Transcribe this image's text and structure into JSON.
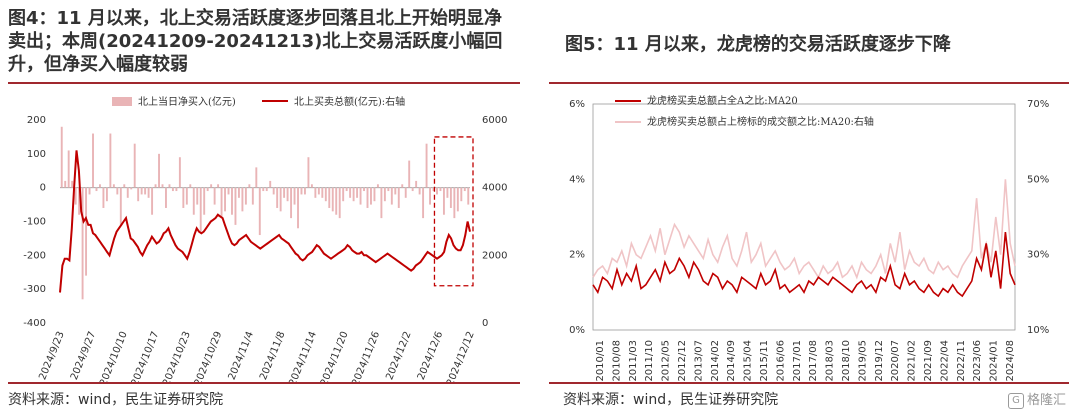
{
  "left": {
    "title": "图4：11 月以来，北上交易活跃度逐步回落且北上开始明显净卖出；本周(20241209-20241213)北上交易活跃度小幅回升，但净买入幅度较弱",
    "source": "资料来源：wind，民生证券研究院",
    "colors": {
      "bar": "#e9b4b6",
      "line": "#c00000",
      "highlight": "#c00000"
    },
    "chart_data": {
      "type": "bar+line",
      "legend": {
        "placement": "top",
        "entries": [
          "北上当日净买入(亿元)",
          "北上买卖总额(亿元):右轴"
        ]
      },
      "x_ticks": [
        "2024/9/23",
        "2024/9/27",
        "2024/10/10",
        "2024/10/17",
        "2024/10/23",
        "2024/10/29",
        "2024/11/4",
        "2024/11/8",
        "2024/11/14",
        "2024/11/20",
        "2024/11/26",
        "2024/12/2",
        "2024/12/6",
        "2024/12/12"
      ],
      "y_left": {
        "min": -400,
        "max": 200,
        "step": 100,
        "ticks": [
          "200",
          "100",
          "0",
          "-100",
          "-200",
          "-300",
          "-400"
        ]
      },
      "y_right": {
        "min": 0,
        "max": 6000,
        "step": 2000,
        "ticks": [
          "6000",
          "4000",
          "2000",
          "0"
        ]
      },
      "net_buy": [
        180,
        20,
        110,
        20,
        -50,
        -80,
        -330,
        -260,
        -20,
        160,
        -10,
        10,
        -60,
        -40,
        160,
        10,
        -20,
        -110,
        10,
        -30,
        -5,
        130,
        -40,
        -20,
        -20,
        -30,
        -80,
        10,
        100,
        10,
        -60,
        10,
        -10,
        -10,
        90,
        -60,
        -50,
        10,
        -80,
        -50,
        -130,
        -80,
        -10,
        10,
        -50,
        10,
        -90,
        -70,
        -20,
        -80,
        -110,
        -30,
        -70,
        -50,
        10,
        -50,
        60,
        -140,
        -10,
        -10,
        20,
        -20,
        -60,
        -70,
        -30,
        -40,
        -90,
        -50,
        -120,
        -20,
        -20,
        90,
        10,
        -30,
        -20,
        -30,
        -40,
        -60,
        -70,
        -80,
        -90,
        -40,
        -10,
        -30,
        -40,
        -30,
        -50,
        -10,
        -60,
        -50,
        -40,
        10,
        -90,
        -40,
        -10,
        -50,
        -20,
        -60,
        10,
        -30,
        80,
        -10,
        20,
        -20,
        -90,
        130,
        -50,
        -10,
        -20,
        -10,
        -80,
        -30,
        -60,
        -90,
        -70,
        -40,
        -10,
        -50
      ],
      "turnover": [
        900,
        1700,
        1900,
        1900,
        1850,
        2800,
        4000,
        5100,
        4500,
        3300,
        3000,
        3100,
        2900,
        2900,
        2650,
        2600,
        2500,
        2400,
        2300,
        2200,
        2100,
        2000,
        2250,
        2500,
        2700,
        2800,
        2900,
        3000,
        3100,
        2800,
        2500,
        2450,
        2350,
        2250,
        2100,
        2000,
        2150,
        2300,
        2400,
        2550,
        2450,
        2350,
        2400,
        2500,
        2650,
        2700,
        2800,
        2600,
        2450,
        2300,
        2200,
        2150,
        2100,
        2000,
        1900,
        2100,
        2350,
        2600,
        2800,
        2700,
        2650,
        2700,
        2800,
        2900,
        3000,
        3050,
        3100,
        3200,
        3150,
        3100,
        2900,
        2700,
        2500,
        2350,
        2300,
        2350,
        2450,
        2500,
        2550,
        2600,
        2500,
        2400,
        2350,
        2300,
        2250,
        2200,
        2250,
        2300,
        2350,
        2400,
        2450,
        2500,
        2550,
        2600,
        2500,
        2450,
        2400,
        2350,
        2250,
        2150,
        2050,
        2000,
        1900,
        1850,
        1900,
        2000,
        2050,
        2100,
        2200,
        2300,
        2250,
        2150,
        2050,
        2000,
        1950,
        1900,
        1950,
        2000,
        2050,
        2100,
        2150,
        2200,
        2300,
        2250,
        2150,
        2100,
        2050,
        2050,
        2100,
        2000,
        2000,
        1950,
        1900,
        1850,
        1800,
        1850,
        1900,
        1950,
        2000,
        2050,
        2000,
        1950,
        1900,
        1850,
        1800,
        1750,
        1700,
        1650,
        1600,
        1550,
        1600,
        1700,
        1750,
        1800,
        1900,
        2000,
        2100,
        2050,
        2000,
        1950,
        1900,
        1950,
        2000,
        2100,
        2400,
        2600,
        2500,
        2300,
        2200,
        2150,
        2150,
        2300,
        2600,
        3000,
        2700
      ],
      "highlight": {
        "start_label": "2024/12/6",
        "y_left_top": 150,
        "y_left_bottom": -290
      }
    }
  },
  "right": {
    "title": "图5：11 月以来，龙虎榜的交易活跃度逐步下降",
    "source": "资料来源：wind，民生证券研究院",
    "watermark": "格隆汇",
    "watermark_icon": "G",
    "colors": {
      "primary": "#c00000",
      "secondary": "#f0c4c6"
    },
    "chart_data": {
      "type": "line",
      "legend": {
        "placement": "top-left",
        "entries": [
          "龙虎榜买卖总额占全A之比:MA20",
          "龙虎榜买卖总额占上榜标的成交额之比:MA20:右轴"
        ]
      },
      "x_ticks": [
        "2010/01",
        "2010/08",
        "2011/03",
        "2011/10",
        "2012/05",
        "2012/12",
        "2013/07",
        "2014/02",
        "2014/09",
        "2015/04",
        "2015/11",
        "2016/06",
        "2017/01",
        "2017/08",
        "2018/03",
        "2018/10",
        "2019/05",
        "2019/12",
        "2020/07",
        "2021/02",
        "2021/09",
        "2022/04",
        "2022/11",
        "2023/06",
        "2024/01",
        "2024/08"
      ],
      "y_left": {
        "min": 0,
        "max": 6,
        "ticks": [
          "6%",
          "4%",
          "2%",
          "0%"
        ]
      },
      "y_right": {
        "min": 10,
        "max": 70,
        "ticks": [
          "70%",
          "50%",
          "30%",
          "10%"
        ]
      },
      "series_left": [
        1.2,
        1.0,
        1.4,
        1.3,
        1.1,
        1.6,
        1.2,
        1.5,
        1.3,
        1.7,
        1.1,
        1.2,
        1.4,
        1.6,
        1.3,
        1.8,
        1.5,
        1.6,
        1.9,
        1.7,
        1.4,
        1.8,
        1.6,
        1.3,
        1.2,
        1.5,
        1.4,
        1.1,
        1.3,
        1.2,
        1.0,
        1.4,
        1.3,
        1.2,
        1.1,
        1.5,
        1.2,
        1.3,
        1.6,
        1.1,
        1.2,
        1.0,
        1.1,
        1.2,
        1.0,
        1.3,
        1.2,
        1.4,
        1.3,
        1.2,
        1.4,
        1.3,
        1.2,
        1.1,
        1.0,
        1.2,
        1.3,
        1.1,
        1.2,
        1.0,
        1.4,
        1.3,
        1.7,
        1.2,
        1.1,
        1.5,
        1.2,
        1.3,
        1.1,
        1.0,
        1.2,
        1.0,
        0.9,
        1.1,
        1.0,
        1.2,
        1.0,
        0.9,
        1.1,
        1.3,
        1.9,
        1.6,
        2.3,
        1.4,
        2.1,
        1.1,
        2.6,
        1.5,
        1.2
      ],
      "series_right": [
        24,
        26,
        27,
        25,
        29,
        28,
        31,
        27,
        33,
        30,
        29,
        32,
        35,
        31,
        37,
        30,
        34,
        38,
        36,
        32,
        35,
        33,
        31,
        29,
        34,
        30,
        28,
        32,
        35,
        29,
        27,
        31,
        36,
        28,
        30,
        33,
        27,
        29,
        31,
        28,
        26,
        27,
        29,
        25,
        27,
        28,
        26,
        24,
        27,
        25,
        26,
        28,
        24,
        25,
        27,
        24,
        28,
        26,
        25,
        27,
        30,
        25,
        33,
        28,
        36,
        26,
        31,
        28,
        27,
        29,
        26,
        25,
        28,
        26,
        27,
        25,
        24,
        27,
        29,
        31,
        45,
        29,
        33,
        28,
        40,
        30,
        50,
        33,
        27
      ]
    }
  }
}
